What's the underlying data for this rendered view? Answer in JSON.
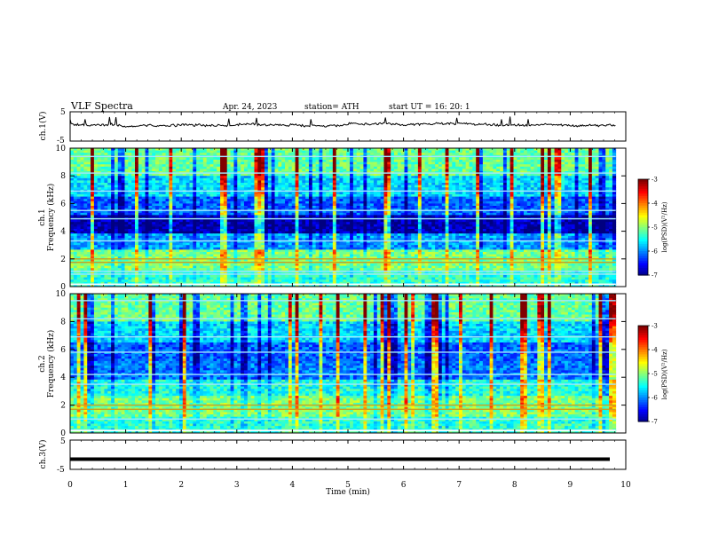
{
  "header": {
    "title": "VLF  Spectra",
    "date": "Apr. 24, 2023",
    "station": "station= ATH",
    "start": "start  UT  =    16: 20: 1"
  },
  "chart_data": [
    {
      "type": "line",
      "panel": "ch1-waveform",
      "ylabel": "ch.1(V)",
      "ylim": [
        -5,
        5
      ],
      "yticks": [
        "5",
        "-5"
      ],
      "baseline": 0.5
    },
    {
      "type": "heatmap",
      "panel": "ch1-spectrogram",
      "ylabel_top": "ch.1",
      "ylabel": "Frequency  (kHz)",
      "ylim": [
        0,
        10
      ],
      "yticks": [
        "0",
        "2",
        "4",
        "6",
        "8",
        "10"
      ],
      "colorbar": {
        "label": "log(PSD)(V²/Hz)",
        "range": [
          -7,
          -3
        ],
        "ticks": [
          "-3",
          "-4",
          "-5",
          "-6",
          "-7"
        ]
      }
    },
    {
      "type": "heatmap",
      "panel": "ch2-spectrogram",
      "ylabel_top": "ch.2",
      "ylabel": "Frequency  (kHz)",
      "ylim": [
        0,
        10
      ],
      "yticks": [
        "0",
        "2",
        "4",
        "6",
        "8",
        "10"
      ],
      "colorbar": {
        "label": "log(PSD)(V²/Hz)",
        "range": [
          -7,
          -3
        ],
        "ticks": [
          "-3",
          "-4",
          "-5",
          "-6",
          "-7"
        ]
      }
    },
    {
      "type": "line",
      "panel": "ch3-waveform",
      "ylabel": "ch.3(V)",
      "ylim": [
        -5,
        5
      ],
      "yticks": [
        "5",
        "-5"
      ],
      "baseline": -1.5
    }
  ],
  "xaxis": {
    "label": "Time  (min)",
    "ticks": [
      "0",
      "1",
      "2",
      "3",
      "4",
      "5",
      "6",
      "7",
      "8",
      "9",
      "10"
    ],
    "xlim": [
      0,
      10
    ],
    "data_end": 9.82
  },
  "colors": {
    "axis": "#000000",
    "background": "#ffffff"
  }
}
